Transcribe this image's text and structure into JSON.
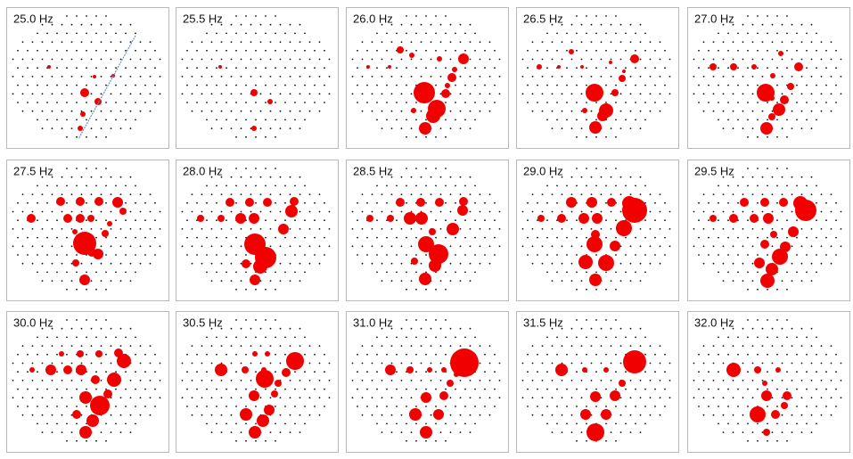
{
  "chart_data": [
    {
      "type": "scatter",
      "title": "25.0 Hz",
      "color": "#f20000",
      "xlim": [
        0,
        182
      ],
      "ylim": [
        158,
        0
      ],
      "x": [
        88,
        103,
        86,
        83,
        48,
        99,
        120
      ],
      "y": [
        96,
        106,
        120,
        136,
        67,
        78,
        77
      ],
      "sizes": [
        5,
        4,
        3,
        3,
        2,
        2,
        2
      ]
    },
    {
      "type": "scatter",
      "title": "25.5 Hz",
      "color": "#f20000",
      "xlim": [
        0,
        182
      ],
      "ylim": [
        158,
        0
      ],
      "x": [
        88,
        106,
        88,
        50
      ],
      "y": [
        96,
        106,
        136,
        67
      ],
      "sizes": [
        4,
        3,
        3,
        2
      ]
    },
    {
      "type": "scatter",
      "title": "26.0 Hz",
      "color": "#f20000",
      "xlim": [
        0,
        182
      ],
      "ylim": [
        158,
        0
      ],
      "x": [
        88,
        102,
        98,
        89,
        112,
        119,
        132,
        61,
        25,
        49,
        74,
        105,
        122,
        76,
        114
      ],
      "y": [
        96,
        114,
        122,
        136,
        97,
        79,
        58,
        48,
        67,
        67,
        54,
        58,
        70,
        116,
        88
      ],
      "sizes": [
        12,
        10,
        8,
        7,
        5,
        5,
        6,
        4,
        2,
        2,
        3,
        3,
        3,
        3,
        3
      ]
    },
    {
      "type": "scatter",
      "title": "26.5 Hz",
      "color": "#f20000",
      "xlim": [
        0,
        182
      ],
      "ylim": [
        158,
        0
      ],
      "x": [
        88,
        101,
        97,
        89,
        111,
        119,
        133,
        62,
        26,
        48,
        74,
        106,
        121,
        77
      ],
      "y": [
        96,
        116,
        122,
        135,
        96,
        80,
        58,
        50,
        67,
        67,
        67,
        62,
        72,
        116
      ],
      "sizes": [
        10,
        8,
        6,
        7,
        4,
        4,
        5,
        3,
        3,
        2,
        2,
        2,
        2,
        3
      ]
    },
    {
      "type": "scatter",
      "title": "27.0 Hz",
      "color": "#f20000",
      "xlim": [
        0,
        182
      ],
      "ylim": [
        158,
        0
      ],
      "x": [
        88,
        103,
        95,
        89,
        109,
        116,
        125,
        96,
        29,
        52,
        75,
        105,
        95
      ],
      "y": [
        96,
        115,
        123,
        136,
        104,
        89,
        67,
        77,
        67,
        67,
        67,
        52,
        102
      ],
      "sizes": [
        10,
        7,
        4,
        7,
        5,
        4,
        5,
        3,
        4,
        4,
        3,
        3,
        3
      ]
    },
    {
      "type": "scatter",
      "title": "27.5 Hz",
      "color": "#f20000",
      "xlim": [
        0,
        182
      ],
      "ylim": [
        158,
        0
      ],
      "x": [
        88,
        103,
        96,
        88,
        78,
        111,
        116,
        125,
        131,
        28,
        69,
        83,
        95,
        61,
        83,
        104,
        77
      ],
      "y": [
        94,
        106,
        104,
        135,
        116,
        83,
        72,
        48,
        58,
        66,
        66,
        66,
        66,
        47,
        47,
        47,
        81
      ],
      "sizes": [
        13,
        6,
        5,
        6,
        4,
        4,
        3,
        6,
        4,
        5,
        5,
        5,
        4,
        5,
        5,
        5,
        3
      ]
    },
    {
      "type": "scatter",
      "title": "28.0 Hz",
      "color": "#f20000",
      "xlim": [
        0,
        182
      ],
      "ylim": [
        158,
        0
      ],
      "x": [
        89,
        101,
        95,
        89,
        79,
        121,
        130,
        133,
        28,
        51,
        73,
        88,
        61,
        83,
        103
      ],
      "y": [
        95,
        110,
        120,
        135,
        117,
        78,
        58,
        47,
        66,
        66,
        66,
        66,
        48,
        48,
        48
      ],
      "sizes": [
        12,
        12,
        8,
        6,
        5,
        6,
        7,
        5,
        4,
        4,
        6,
        6,
        5,
        5,
        5
      ]
    },
    {
      "type": "scatter",
      "title": "28.5 Hz",
      "color": "#f20000",
      "xlim": [
        0,
        182
      ],
      "ylim": [
        158,
        0
      ],
      "x": [
        90,
        104,
        100,
        89,
        77,
        120,
        131,
        132,
        27,
        50,
        72,
        85,
        61,
        84,
        105,
        97
      ],
      "y": [
        95,
        106,
        119,
        134,
        114,
        78,
        57,
        47,
        66,
        66,
        66,
        66,
        48,
        48,
        48,
        81
      ],
      "sizes": [
        9,
        11,
        7,
        7,
        4,
        7,
        6,
        5,
        4,
        4,
        7,
        7,
        5,
        5,
        5,
        4
      ]
    },
    {
      "type": "scatter",
      "title": "29.0 Hz",
      "color": "#f20000",
      "xlim": [
        0,
        182
      ],
      "ylim": [
        158,
        0
      ],
      "x": [
        88,
        101,
        78,
        89,
        111,
        121,
        133,
        127,
        28,
        51,
        76,
        91,
        62,
        85,
        107,
        89
      ],
      "y": [
        95,
        116,
        115,
        135,
        97,
        77,
        57,
        49,
        66,
        66,
        66,
        66,
        48,
        48,
        48,
        84
      ],
      "sizes": [
        9,
        9,
        8,
        7,
        6,
        9,
        14,
        8,
        4,
        5,
        6,
        6,
        6,
        6,
        5,
        5
      ]
    },
    {
      "type": "scatter",
      "title": "29.5 Hz",
      "color": "#f20000",
      "xlim": [
        0,
        182
      ],
      "ylim": [
        158,
        0
      ],
      "x": [
        90,
        95,
        104,
        81,
        110,
        119,
        133,
        127,
        29,
        52,
        75,
        91,
        64,
        87,
        108,
        87,
        97
      ],
      "y": [
        136,
        123,
        109,
        116,
        98,
        81,
        57,
        49,
        66,
        66,
        66,
        66,
        48,
        48,
        48,
        95,
        84
      ],
      "sizes": [
        8,
        7,
        9,
        6,
        6,
        6,
        12,
        8,
        4,
        5,
        5,
        6,
        5,
        5,
        5,
        5,
        4
      ]
    },
    {
      "type": "scatter",
      "title": "30.0 Hz",
      "color": "#f20000",
      "xlim": [
        0,
        182
      ],
      "ylim": [
        158,
        0
      ],
      "x": [
        89,
        97,
        105,
        89,
        79,
        121,
        114,
        132,
        126,
        29,
        50,
        69,
        84,
        62,
        83,
        104,
        100
      ],
      "y": [
        136,
        123,
        106,
        97,
        116,
        77,
        93,
        56,
        47,
        66,
        66,
        66,
        66,
        48,
        48,
        48,
        77
      ],
      "sizes": [
        7,
        7,
        11,
        7,
        5,
        8,
        5,
        8,
        5,
        3,
        6,
        5,
        6,
        3,
        4,
        4,
        5
      ]
    },
    {
      "type": "scatter",
      "title": "30.5 Hz",
      "color": "#f20000",
      "xlim": [
        0,
        182
      ],
      "ylim": [
        158,
        0
      ],
      "x": [
        89,
        98,
        105,
        79,
        88,
        111,
        115,
        100,
        124,
        134,
        51,
        78,
        99,
        89,
        103
      ],
      "y": [
        136,
        123,
        111,
        116,
        95,
        93,
        81,
        76,
        69,
        56,
        66,
        66,
        66,
        48,
        48
      ],
      "sizes": [
        7,
        7,
        6,
        7,
        6,
        4,
        4,
        10,
        5,
        10,
        7,
        4,
        3,
        3,
        3
      ]
    },
    {
      "type": "scatter",
      "title": "31.0 Hz",
      "color": "#f20000",
      "xlim": [
        0,
        182
      ],
      "ylim": [
        158,
        0
      ],
      "x": [
        90,
        78,
        104,
        90,
        110,
        117,
        124,
        133,
        50,
        72,
        94,
        110
      ],
      "y": [
        136,
        116,
        116,
        97,
        95,
        81,
        71,
        58,
        66,
        66,
        66,
        66
      ],
      "sizes": [
        7,
        7,
        6,
        6,
        5,
        4,
        3,
        16,
        6,
        4,
        3,
        3
      ]
    },
    {
      "type": "scatter",
      "title": "31.5 Hz",
      "color": "#f20000",
      "xlim": [
        0,
        182
      ],
      "ylim": [
        158,
        0
      ],
      "x": [
        89,
        78,
        101,
        89,
        111,
        119,
        133,
        51,
        77,
        101
      ],
      "y": [
        136,
        116,
        116,
        96,
        95,
        81,
        57,
        66,
        66,
        66
      ],
      "sizes": [
        10,
        6,
        6,
        6,
        6,
        4,
        13,
        7,
        3,
        3
      ]
    },
    {
      "type": "scatter",
      "title": "32.0 Hz",
      "color": "#f20000",
      "xlim": [
        0,
        182
      ],
      "ylim": [
        158,
        0
      ],
      "x": [
        79,
        89,
        89,
        99,
        112,
        109,
        52,
        79,
        102,
        87
      ],
      "y": [
        116,
        95,
        136,
        116,
        95,
        106,
        66,
        66,
        66,
        81
      ],
      "sizes": [
        9,
        6,
        4,
        5,
        5,
        4,
        8,
        4,
        3,
        3
      ]
    }
  ]
}
